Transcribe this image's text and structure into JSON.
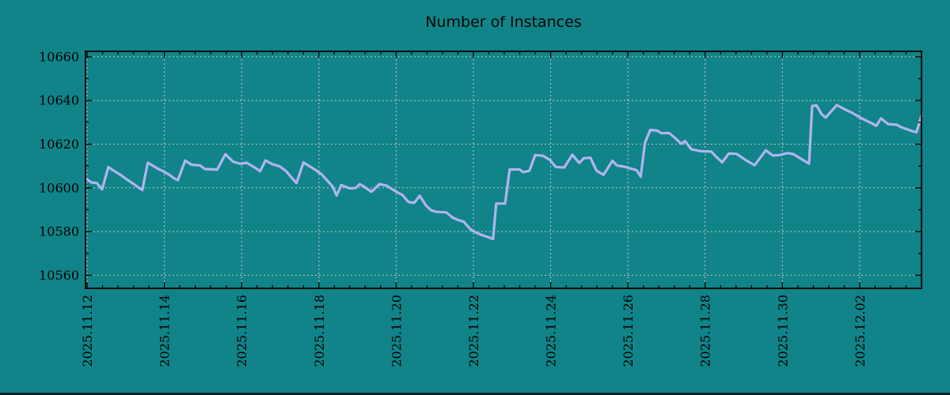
{
  "title": "Number of Instances",
  "colors": {
    "background": "#108488",
    "line": "#b2b4f0",
    "grid": "#c9c9c9",
    "axis": "#000000",
    "title_text": "#050505",
    "bottom_edge": "#07232a"
  },
  "chart_data": {
    "type": "line",
    "title": "Number of Instances",
    "xlabel": "",
    "ylabel": "",
    "grid": true,
    "legend": "none",
    "y_axis": {
      "min": 10554,
      "max": 10662.5,
      "tick_values": [
        10560,
        10580,
        10600,
        10620,
        10640,
        10660
      ],
      "minor_tick_step": 10
    },
    "x_axis": {
      "total_days": 21.6,
      "major_tick_step_days": 2,
      "minor_tick_step_days": 0.4,
      "tick_labels": [
        "2025.11.12",
        "2025.11.14",
        "2025.11.16",
        "2025.11.18",
        "2025.11.20",
        "2025.11.22",
        "2025.11.24",
        "2025.11.26",
        "2025.11.28",
        "2025.11.30",
        "2025.12.02"
      ]
    },
    "points": [
      [
        0.0,
        10604
      ],
      [
        0.1,
        10602.5
      ],
      [
        0.25,
        10602.2
      ],
      [
        0.39,
        10599.3
      ],
      [
        0.55,
        10609.5
      ],
      [
        0.7,
        10607.7
      ],
      [
        0.86,
        10606
      ],
      [
        1.02,
        10604
      ],
      [
        1.21,
        10601.7
      ],
      [
        1.33,
        10600.2
      ],
      [
        1.43,
        10599
      ],
      [
        1.57,
        10611.5
      ],
      [
        1.72,
        10610
      ],
      [
        1.84,
        10608.7
      ],
      [
        1.98,
        10607.5
      ],
      [
        2.13,
        10606
      ],
      [
        2.25,
        10604.4
      ],
      [
        2.35,
        10603.5
      ],
      [
        2.54,
        10612.5
      ],
      [
        2.7,
        10610.6
      ],
      [
        2.92,
        10610.3
      ],
      [
        3.05,
        10608.6
      ],
      [
        3.37,
        10608.4
      ],
      [
        3.58,
        10615.4
      ],
      [
        3.78,
        10612
      ],
      [
        3.97,
        10611
      ],
      [
        4.13,
        10611.5
      ],
      [
        4.34,
        10609.3
      ],
      [
        4.48,
        10607.6
      ],
      [
        4.62,
        10612.6
      ],
      [
        4.79,
        10610.9
      ],
      [
        4.99,
        10609.8
      ],
      [
        5.15,
        10607.7
      ],
      [
        5.28,
        10605
      ],
      [
        5.42,
        10602.2
      ],
      [
        5.6,
        10611.6
      ],
      [
        5.77,
        10609.8
      ],
      [
        5.91,
        10608.2
      ],
      [
        6.07,
        10606.2
      ],
      [
        6.22,
        10603.3
      ],
      [
        6.36,
        10600.6
      ],
      [
        6.46,
        10596.5
      ],
      [
        6.58,
        10601.3
      ],
      [
        6.79,
        10599.8
      ],
      [
        6.95,
        10599.9
      ],
      [
        7.06,
        10601.7
      ],
      [
        7.16,
        10600.7
      ],
      [
        7.36,
        10598.2
      ],
      [
        7.57,
        10601.7
      ],
      [
        7.75,
        10601
      ],
      [
        8.02,
        10598.1
      ],
      [
        8.16,
        10596.8
      ],
      [
        8.32,
        10593.5
      ],
      [
        8.47,
        10593.2
      ],
      [
        8.61,
        10596.4
      ],
      [
        8.77,
        10592
      ],
      [
        8.9,
        10589.8
      ],
      [
        9.04,
        10589
      ],
      [
        9.3,
        10588.8
      ],
      [
        9.45,
        10586.5
      ],
      [
        9.61,
        10585.3
      ],
      [
        9.75,
        10584.5
      ],
      [
        9.92,
        10581.1
      ],
      [
        10.06,
        10579.6
      ],
      [
        10.22,
        10578.4
      ],
      [
        10.37,
        10577.5
      ],
      [
        10.51,
        10576.6
      ],
      [
        10.59,
        10592.8
      ],
      [
        10.82,
        10592.8
      ],
      [
        10.94,
        10608.4
      ],
      [
        11.19,
        10608.5
      ],
      [
        11.29,
        10607.2
      ],
      [
        11.45,
        10607.8
      ],
      [
        11.6,
        10615
      ],
      [
        11.8,
        10614.7
      ],
      [
        11.98,
        10612.8
      ],
      [
        12.13,
        10609.6
      ],
      [
        12.35,
        10609.3
      ],
      [
        12.56,
        10615.2
      ],
      [
        12.74,
        10611.4
      ],
      [
        12.86,
        10613.6
      ],
      [
        13.03,
        10613.8
      ],
      [
        13.19,
        10607.8
      ],
      [
        13.37,
        10606
      ],
      [
        13.6,
        10612.4
      ],
      [
        13.72,
        10610.2
      ],
      [
        13.91,
        10609.7
      ],
      [
        14.11,
        10608.7
      ],
      [
        14.23,
        10608
      ],
      [
        14.33,
        10605.1
      ],
      [
        14.44,
        10620.5
      ],
      [
        14.58,
        10626.6
      ],
      [
        14.76,
        10626.2
      ],
      [
        14.87,
        10625
      ],
      [
        15.07,
        10625.1
      ],
      [
        15.25,
        10622.4
      ],
      [
        15.38,
        10620.2
      ],
      [
        15.48,
        10621.4
      ],
      [
        15.64,
        10617.7
      ],
      [
        15.89,
        10616.8
      ],
      [
        16.16,
        10616.6
      ],
      [
        16.3,
        10614
      ],
      [
        16.44,
        10611.7
      ],
      [
        16.61,
        10615.7
      ],
      [
        16.81,
        10615.6
      ],
      [
        17.06,
        10612.6
      ],
      [
        17.28,
        10610.4
      ],
      [
        17.57,
        10617.2
      ],
      [
        17.75,
        10614.8
      ],
      [
        17.93,
        10615
      ],
      [
        18.12,
        10615.9
      ],
      [
        18.28,
        10615.5
      ],
      [
        18.51,
        10613
      ],
      [
        18.69,
        10611.1
      ],
      [
        18.77,
        10637.5
      ],
      [
        18.88,
        10637.8
      ],
      [
        19.02,
        10633.6
      ],
      [
        19.12,
        10632.2
      ],
      [
        19.3,
        10635.8
      ],
      [
        19.41,
        10637.9
      ],
      [
        19.61,
        10636
      ],
      [
        19.82,
        10634.2
      ],
      [
        19.98,
        10632.5
      ],
      [
        20.14,
        10631
      ],
      [
        20.29,
        10629.8
      ],
      [
        20.43,
        10628.4
      ],
      [
        20.55,
        10631.8
      ],
      [
        20.74,
        10629.2
      ],
      [
        20.96,
        10628.9
      ],
      [
        21.06,
        10627.9
      ],
      [
        21.25,
        10626.7
      ],
      [
        21.37,
        10625.9
      ],
      [
        21.47,
        10625.5
      ],
      [
        21.6,
        10633
      ]
    ]
  }
}
